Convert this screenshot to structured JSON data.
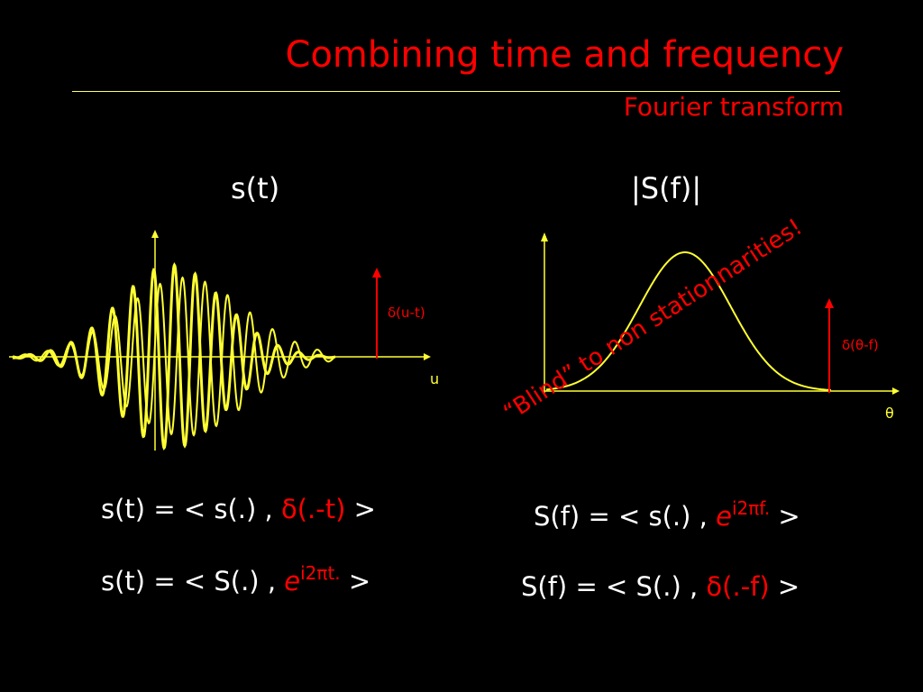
{
  "slide": {
    "title": "Combining time and frequency",
    "subtitle": "Fourier transform"
  },
  "left_panel": {
    "heading": "s(t)",
    "delta_label": "δ(u-t)",
    "axis_label": "u"
  },
  "right_panel": {
    "heading": "|S(f)|",
    "delta_label": "δ(θ-f)",
    "axis_label": "θ",
    "annotation": "“Blind” to non stationnarities!"
  },
  "equations": {
    "left_1": {
      "lhs": "s(t) = < s(.) , ",
      "term": "δ(.-t)",
      "close": " >"
    },
    "left_2": {
      "lhs": "s(t) = < S(.) , ",
      "base": "e",
      "exp": "i2πt.",
      "close": " >"
    },
    "right_1": {
      "lhs": "S(f) = < s(.) , ",
      "base": "e",
      "exp": "i2πf.",
      "close": " >"
    },
    "right_2": {
      "lhs": "S(f) = < S(.) , ",
      "term": "δ(.-f)",
      "close": " >"
    }
  },
  "colors": {
    "background": "#000000",
    "title": "#ff0000",
    "curve": "#ffff33",
    "axis": "#ffff33",
    "delta": "#ff0000",
    "text": "#ffffff"
  }
}
